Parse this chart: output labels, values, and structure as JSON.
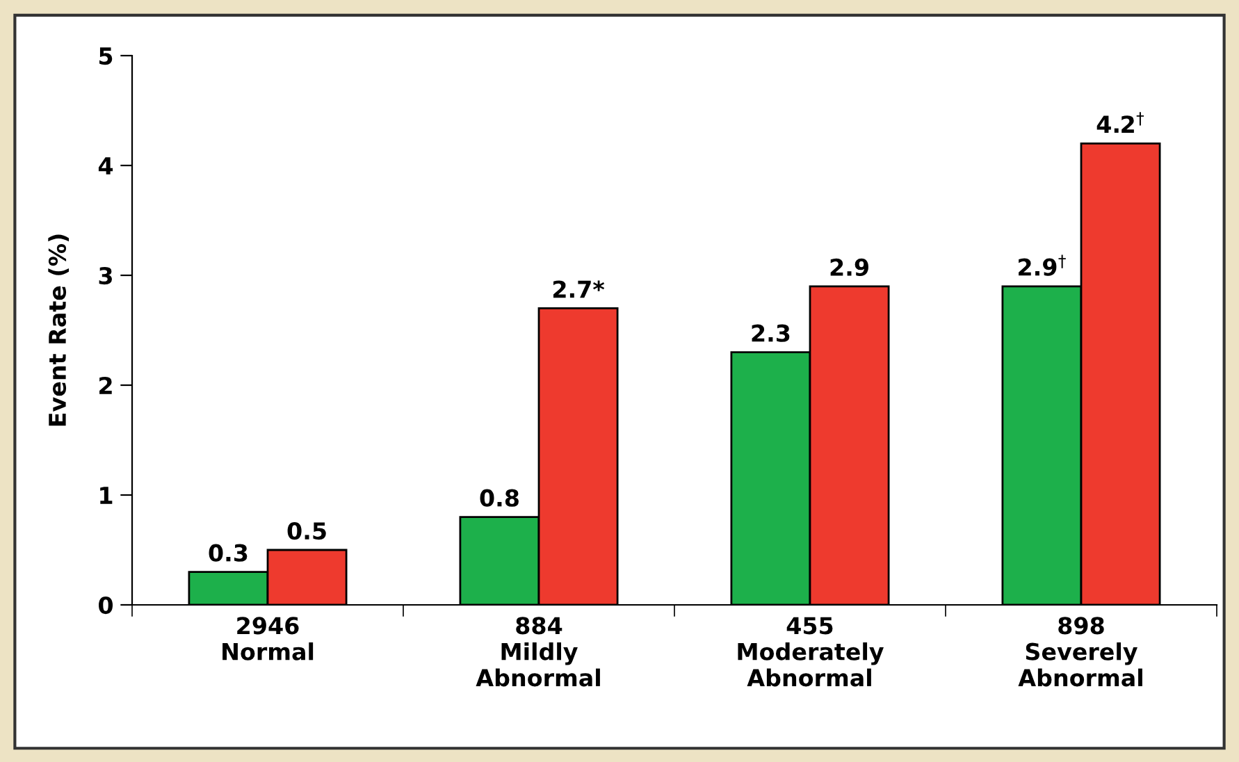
{
  "chart_data": {
    "type": "bar",
    "ylabel": "Event Rate (%)",
    "categories": [
      "2946\nNormal",
      "884\nMildly\nAbnormal",
      "455\nModerately\nAbnormal",
      "898\nSeverely\nAbnormal"
    ],
    "series": [
      {
        "color": "#1db04b",
        "values": [
          0.3,
          0.8,
          2.3,
          2.9
        ],
        "value_labels": [
          "0.3",
          "0.8",
          "2.3",
          "2.9$^{†}$"
        ]
      },
      {
        "color": "#ee3a2e",
        "values": [
          0.5,
          2.7,
          2.9,
          4.2
        ],
        "value_labels": [
          "0.5",
          "2.7*",
          "2.9",
          "4.2$^{†}$"
        ]
      }
    ],
    "ylim": [
      0,
      5
    ],
    "yticks": [
      0,
      1,
      2,
      3,
      4,
      5
    ],
    "grid": false,
    "legend": false
  }
}
